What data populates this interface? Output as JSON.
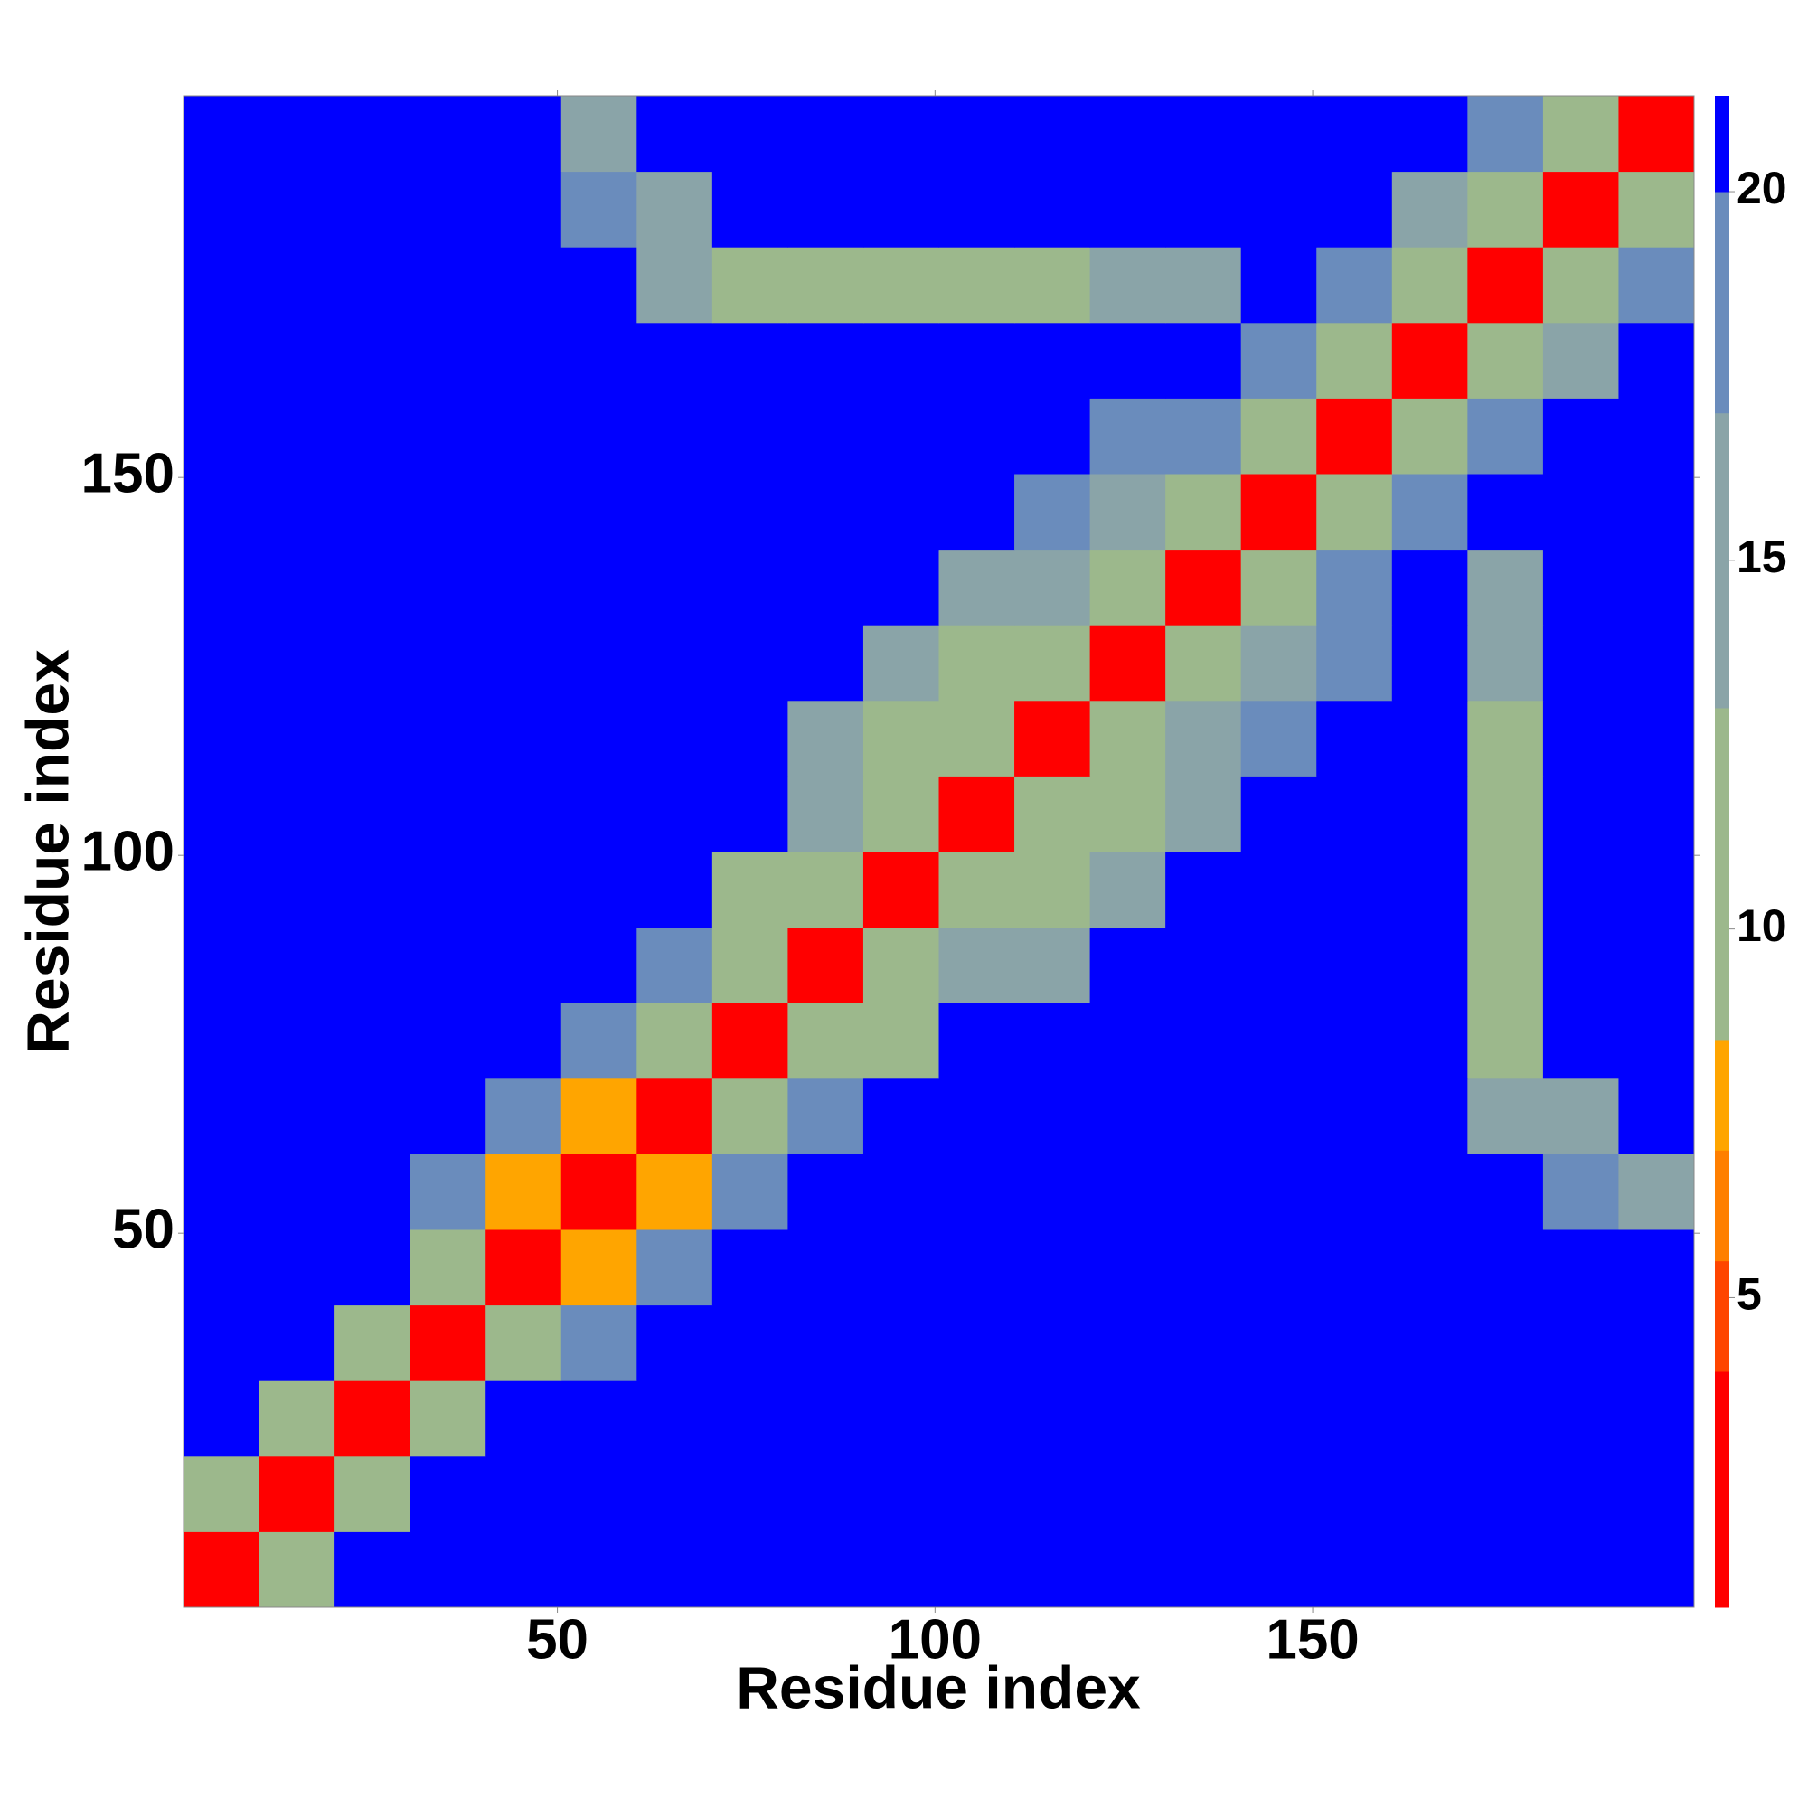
{
  "chart_data": {
    "type": "heatmap",
    "x_label": "Residue index",
    "y_label": "Residue index",
    "x": [
      5.5,
      15.5,
      25.5,
      35.5,
      45.5,
      55.5,
      65.5,
      75.5,
      85.5,
      95.5,
      105.5,
      115.5,
      125.5,
      135.5,
      145.5,
      155.5,
      165.5,
      175.5,
      185.5,
      195.5
    ],
    "y": [
      5.5,
      15.5,
      25.5,
      35.5,
      45.5,
      55.5,
      65.5,
      75.5,
      85.5,
      95.5,
      105.5,
      115.5,
      125.5,
      135.5,
      145.5,
      155.5,
      165.5,
      175.5,
      185.5,
      195.5
    ],
    "z": [
      [
        3,
        10,
        21,
        21,
        21,
        21,
        21,
        21,
        21,
        21,
        21,
        21,
        21,
        21,
        21,
        21,
        21,
        21,
        21,
        21
      ],
      [
        10,
        3,
        10,
        21,
        21,
        21,
        21,
        21,
        21,
        21,
        21,
        21,
        21,
        21,
        21,
        21,
        21,
        21,
        21,
        21
      ],
      [
        21,
        10,
        3,
        10,
        21,
        21,
        21,
        21,
        21,
        21,
        21,
        21,
        21,
        21,
        21,
        21,
        21,
        21,
        21,
        21
      ],
      [
        21,
        21,
        10,
        3,
        9,
        19,
        21,
        21,
        21,
        21,
        21,
        21,
        21,
        21,
        21,
        21,
        21,
        21,
        21,
        21
      ],
      [
        21,
        21,
        21,
        9,
        3,
        8,
        18,
        21,
        21,
        21,
        21,
        21,
        21,
        21,
        21,
        21,
        21,
        21,
        21,
        21
      ],
      [
        21,
        21,
        21,
        19,
        8,
        3,
        8,
        19,
        21,
        21,
        21,
        21,
        21,
        21,
        21,
        21,
        21,
        21,
        19,
        17
      ],
      [
        21,
        21,
        21,
        21,
        18,
        8,
        3,
        9,
        18,
        21,
        21,
        21,
        21,
        21,
        21,
        21,
        21,
        16,
        17,
        21
      ],
      [
        21,
        21,
        21,
        21,
        21,
        19,
        9,
        3,
        10,
        12,
        21,
        21,
        21,
        21,
        21,
        21,
        21,
        11,
        21,
        21
      ],
      [
        21,
        21,
        21,
        21,
        21,
        21,
        18,
        10,
        3,
        9,
        14,
        17,
        21,
        21,
        21,
        21,
        21,
        12,
        21,
        21
      ],
      [
        21,
        21,
        21,
        21,
        21,
        21,
        21,
        12,
        9,
        3,
        10,
        13,
        16,
        21,
        21,
        21,
        21,
        11,
        21,
        21
      ],
      [
        21,
        21,
        21,
        21,
        21,
        21,
        21,
        21,
        14,
        10,
        3,
        9,
        13,
        17,
        21,
        21,
        21,
        13,
        21,
        21
      ],
      [
        21,
        21,
        21,
        21,
        21,
        21,
        21,
        21,
        17,
        13,
        9,
        3,
        9,
        14,
        18,
        21,
        21,
        13,
        21,
        21
      ],
      [
        21,
        21,
        21,
        21,
        21,
        21,
        21,
        21,
        21,
        16,
        13,
        9,
        3,
        10,
        15,
        20,
        21,
        14,
        21,
        21
      ],
      [
        21,
        21,
        21,
        21,
        21,
        21,
        21,
        21,
        21,
        21,
        17,
        14,
        10,
        3,
        11,
        18,
        21,
        16,
        21,
        21
      ],
      [
        21,
        21,
        21,
        21,
        21,
        21,
        21,
        21,
        21,
        21,
        21,
        18,
        15,
        11,
        3,
        11,
        18,
        21,
        21,
        21
      ],
      [
        21,
        21,
        21,
        21,
        21,
        21,
        21,
        21,
        21,
        21,
        21,
        21,
        20,
        18,
        11,
        3,
        10,
        18,
        21,
        21
      ],
      [
        21,
        21,
        21,
        21,
        21,
        21,
        21,
        21,
        21,
        21,
        21,
        21,
        21,
        21,
        18,
        10,
        3,
        10,
        17,
        21
      ],
      [
        21,
        21,
        21,
        21,
        21,
        21,
        16,
        11,
        12,
        11,
        13,
        13,
        14,
        16,
        21,
        18,
        10,
        3,
        10,
        19
      ],
      [
        21,
        21,
        21,
        21,
        21,
        19,
        17,
        21,
        21,
        21,
        21,
        21,
        21,
        21,
        21,
        21,
        17,
        10,
        3,
        9
      ],
      [
        21,
        21,
        21,
        21,
        21,
        17,
        21,
        21,
        21,
        21,
        21,
        21,
        21,
        21,
        21,
        21,
        21,
        19,
        9,
        3
      ]
    ],
    "xlim": [
      0.5,
      200.5
    ],
    "ylim": [
      0.5,
      200.5
    ],
    "xticks": [
      50,
      100,
      150
    ],
    "yticks": [
      50,
      100,
      150
    ],
    "zlim": [
      0.8,
      21.3
    ],
    "zticks": [
      5,
      10,
      15,
      20
    ],
    "level_bounds": [
      0.8,
      4,
      5.5,
      7,
      8.5,
      13,
      17,
      20,
      21.3
    ],
    "level_colors": [
      "#ff0000",
      "#ff4500",
      "#ff7f00",
      "#ffa500",
      "#9cb88c",
      "#8aa4a8",
      "#6a8cbc",
      "#0000ff"
    ]
  }
}
